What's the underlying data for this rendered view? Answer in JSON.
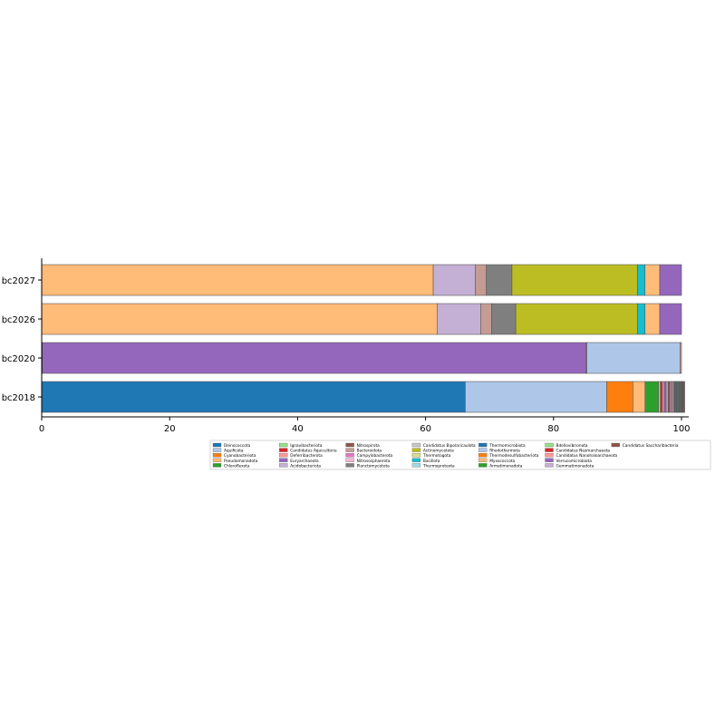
{
  "chart_data": {
    "type": "bar",
    "orientation": "horizontal",
    "stacked": true,
    "title": "",
    "xlabel": "",
    "ylabel": "",
    "xlim": [
      0,
      100
    ],
    "x_ticks": [
      0,
      20,
      40,
      60,
      80,
      100
    ],
    "grid": false,
    "legend_position": "bottom",
    "categories": [
      "bc2018",
      "bc2020",
      "bc2026",
      "bc2027"
    ],
    "series": [
      {
        "name": "Deinococcota",
        "color": "#1f77b4",
        "values": [
          66.2,
          0,
          0,
          0
        ]
      },
      {
        "name": "Aquificota",
        "color": "#aec7e8",
        "values": [
          22.1,
          0,
          0,
          0
        ]
      },
      {
        "name": "Cyanobacteriota",
        "color": "#ff7f0e",
        "values": [
          4.1,
          0,
          0,
          0
        ]
      },
      {
        "name": "Pseudomonadota",
        "color": "#ffbb78",
        "values": [
          1.9,
          0.1,
          61.8,
          61.2
        ]
      },
      {
        "name": "Chloroflexota",
        "color": "#2ca02c",
        "values": [
          2.1,
          0,
          0,
          0
        ]
      },
      {
        "name": "Ignavibacteriota",
        "color": "#98df8a",
        "values": [
          0.3,
          0,
          0,
          0
        ]
      },
      {
        "name": "Candidatus Aquicultoria",
        "color": "#d62728",
        "values": [
          0.3,
          0,
          0,
          0
        ]
      },
      {
        "name": "Deferribacterota",
        "color": "#ff9896",
        "values": [
          0.3,
          0,
          0,
          0
        ]
      },
      {
        "name": "Euryarchaeota",
        "color": "#9467bd",
        "values": [
          0.3,
          85.0,
          0,
          0
        ]
      },
      {
        "name": "Acidobacteriota",
        "color": "#c5b0d5",
        "values": [
          0.3,
          0,
          6.8,
          6.6
        ]
      },
      {
        "name": "Nitrospirota",
        "color": "#8c564b",
        "values": [
          0.2,
          0,
          0,
          0
        ]
      },
      {
        "name": "Bacteroidota",
        "color": "#c49c94",
        "values": [
          0.2,
          0.1,
          1.7,
          1.7
        ]
      },
      {
        "name": "Campylobacterota",
        "color": "#e377c2",
        "values": [
          0.2,
          0,
          0,
          0
        ]
      },
      {
        "name": "Nitrososphaerota",
        "color": "#f7b6d2",
        "values": [
          0.2,
          0,
          0,
          0
        ]
      },
      {
        "name": "Planctomycetota",
        "color": "#7f7f7f",
        "values": [
          0.2,
          0,
          3.8,
          4.0
        ]
      },
      {
        "name": "Candidatus Bipolaricaulota",
        "color": "#c7c7c7",
        "values": [
          0.1,
          0,
          0,
          0
        ]
      },
      {
        "name": "Actinomycetota",
        "color": "#bcbd22",
        "values": [
          0.1,
          0,
          19.0,
          19.6
        ]
      },
      {
        "name": "Thermotogota",
        "color": "#dbdb8d",
        "values": [
          0.1,
          0,
          0,
          0
        ]
      },
      {
        "name": "Bacillota",
        "color": "#17becf",
        "values": [
          0.1,
          0,
          1.2,
          1.2
        ]
      },
      {
        "name": "Thermoproteota",
        "color": "#9edae5",
        "values": [
          0.1,
          0,
          0,
          0
        ]
      },
      {
        "name": "Thermomicrobiota",
        "color": "#1f77b4",
        "values": [
          0.1,
          0,
          0,
          0
        ]
      },
      {
        "name": "Rhodothermota",
        "color": "#aec7e8",
        "values": [
          0.1,
          14.6,
          0,
          0
        ]
      },
      {
        "name": "Thermodesulfobacteriota",
        "color": "#ff7f0e",
        "values": [
          0.1,
          0,
          0,
          0
        ]
      },
      {
        "name": "Myxococcota",
        "color": "#ffbb78",
        "values": [
          0.1,
          0,
          2.3,
          2.3
        ]
      },
      {
        "name": "Armatimonadota",
        "color": "#2ca02c",
        "values": [
          0.1,
          0,
          0,
          0
        ]
      },
      {
        "name": "Bdellovibrionota",
        "color": "#98df8a",
        "values": [
          0.1,
          0,
          0,
          0
        ]
      },
      {
        "name": "Candidatus Nezmarchaeota",
        "color": "#d62728",
        "values": [
          0.1,
          0,
          0,
          0
        ]
      },
      {
        "name": "Candidatus Nanohaloarchaeota",
        "color": "#ff9896",
        "values": [
          0.1,
          0.2,
          0,
          0
        ]
      },
      {
        "name": "Verrucomicrobiota",
        "color": "#9467bd",
        "values": [
          0.1,
          0,
          3.4,
          3.4
        ]
      },
      {
        "name": "Gemmatimonadota",
        "color": "#c5b0d5",
        "values": [
          0.1,
          0,
          0,
          0
        ]
      },
      {
        "name": "Candidatus Saccharibacteria",
        "color": "#8c564b",
        "values": [
          0.1,
          0,
          0,
          0
        ]
      }
    ]
  }
}
